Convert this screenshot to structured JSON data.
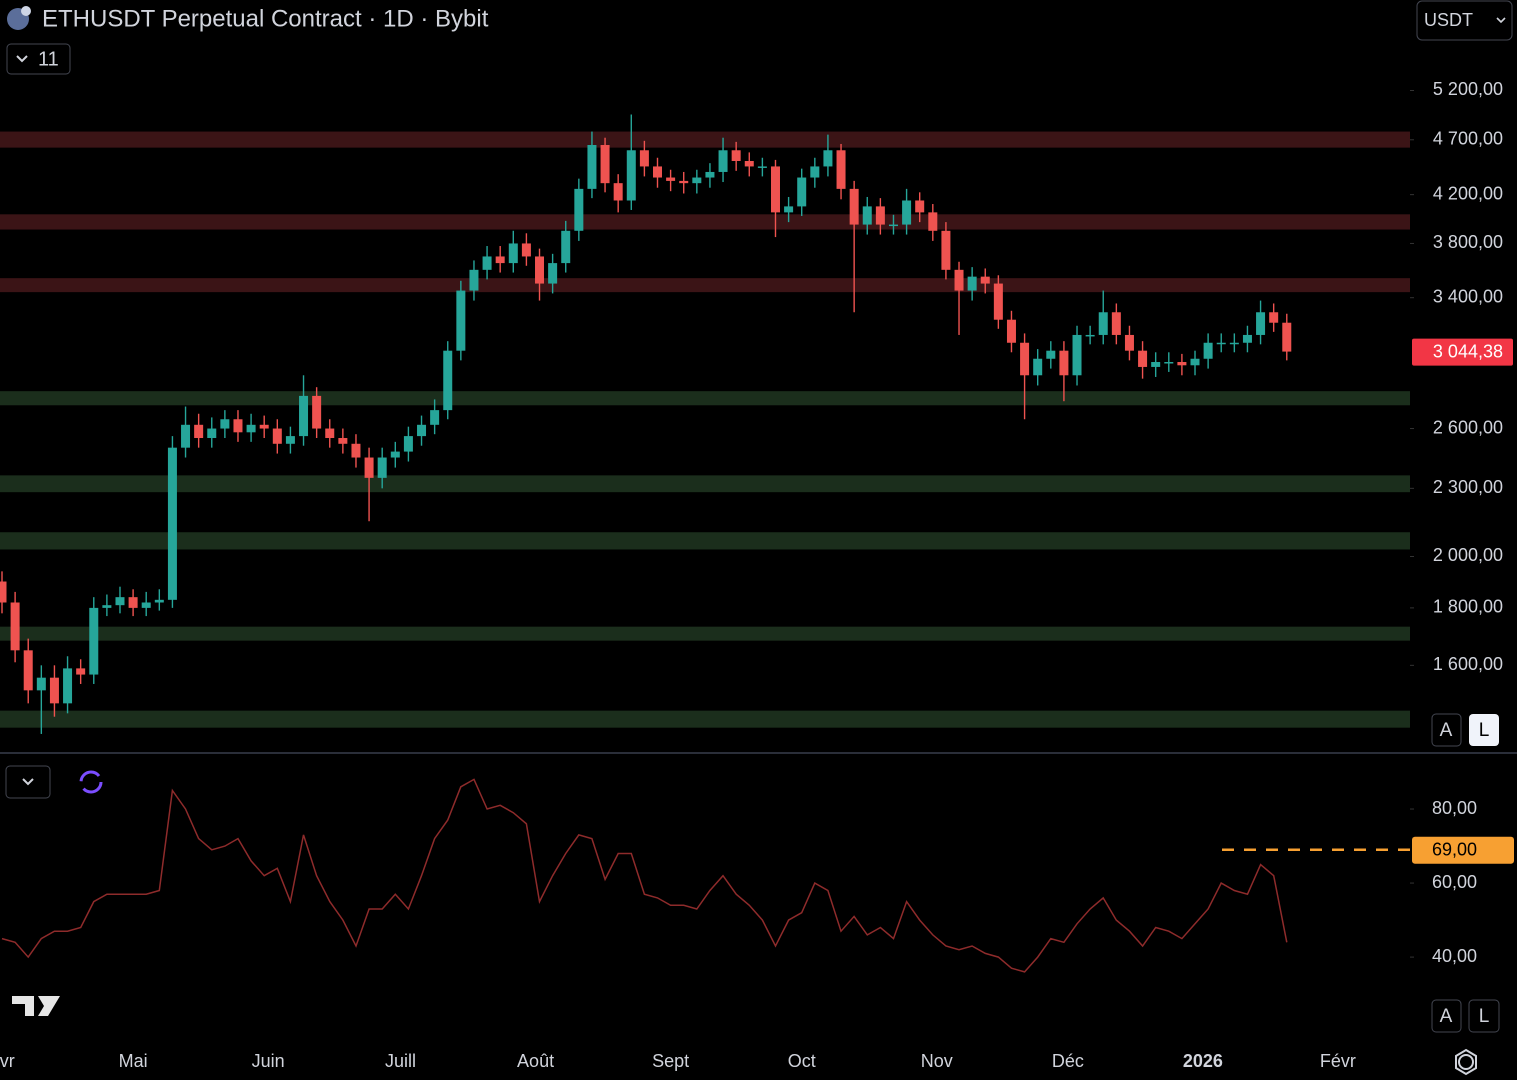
{
  "header": {
    "title": "ETHUSDT Perpetual Contract · 1D · Bybit",
    "indicator_count": "11",
    "currency": "USDT"
  },
  "scale_buttons": [
    "A",
    "L"
  ],
  "chart_data": [
    {
      "type": "candlestick",
      "log_scale": true,
      "up_color": "#26a69a",
      "down_color": "#ef5350",
      "ylim": [
        1345,
        6260
      ],
      "yticks": [
        {
          "value": 5200,
          "label": "5 200,00"
        },
        {
          "value": 4700,
          "label": "4 700,00"
        },
        {
          "value": 4200,
          "label": "4 200,00"
        },
        {
          "value": 3800,
          "label": "3 800,00"
        },
        {
          "value": 3400,
          "label": "3 400,00"
        },
        {
          "value": 2600,
          "label": "2 600,00"
        },
        {
          "value": 2300,
          "label": "2 300,00"
        },
        {
          "value": 2000,
          "label": "2 000,00"
        },
        {
          "value": 1800,
          "label": "1 800,00"
        },
        {
          "value": 1600,
          "label": "1 600,00"
        }
      ],
      "xticks": [
        {
          "value": 0.4,
          "label": "vr"
        },
        {
          "value": 10,
          "label": "Mai"
        },
        {
          "value": 20.3,
          "label": "Juin"
        },
        {
          "value": 30.4,
          "label": "Juill"
        },
        {
          "value": 40.7,
          "label": "Août"
        },
        {
          "value": 51,
          "label": "Sept"
        },
        {
          "value": 61,
          "label": "Oct"
        },
        {
          "value": 71.3,
          "label": "Nov"
        },
        {
          "value": 81.3,
          "label": "Déc"
        },
        {
          "value": 91.6,
          "label": "2026"
        },
        {
          "value": 101.9,
          "label": "Févr"
        }
      ],
      "zones": [
        {
          "low": 4625,
          "high": 4780,
          "color": "#3b1416"
        },
        {
          "low": 3910,
          "high": 4034,
          "color": "#3b1416"
        },
        {
          "low": 3439,
          "high": 3539,
          "color": "#3b1416"
        },
        {
          "low": 2727,
          "high": 2807,
          "color": "#1b2e1c"
        },
        {
          "low": 2282,
          "high": 2362,
          "color": "#1b2e1c"
        },
        {
          "low": 2029,
          "high": 2102,
          "color": "#1b2e1c"
        },
        {
          "low": 1683,
          "high": 1732,
          "color": "#1b2e1c"
        },
        {
          "low": 1408,
          "high": 1458,
          "color": "#1b2e1c"
        }
      ],
      "last_price": {
        "value": 3044.38,
        "label": "3 044,38",
        "color": "#f23645"
      },
      "open": [
        1900,
        1820,
        1650,
        1520,
        1560,
        1480,
        1590,
        1570,
        1800,
        1810,
        1840,
        1800,
        1820,
        1830,
        2500,
        2620,
        2550,
        2600,
        2650,
        2580,
        2620,
        2600,
        2520,
        2560,
        2780,
        2600,
        2550,
        2520,
        2450,
        2350,
        2450,
        2480,
        2560,
        2620,
        2700,
        3050,
        3450,
        3600,
        3700,
        3650,
        3800,
        3700,
        3500,
        3650,
        3900,
        4250,
        4650,
        4300,
        4150,
        4600,
        4450,
        4350,
        4320,
        4300,
        4350,
        4400,
        4600,
        4500,
        4450,
        4450,
        4050,
        4100,
        4350,
        4450,
        4600,
        4250,
        3950,
        4100,
        3950,
        3950,
        4150,
        4050,
        3900,
        3600,
        3450,
        3550,
        3500,
        3250,
        3100,
        2900,
        3000,
        3050,
        2900,
        3150,
        3150,
        3300,
        3150,
        3050,
        2950,
        2980,
        2980,
        2960,
        3000,
        3100,
        3100,
        3100,
        3150,
        3300,
        3230
      ],
      "high": [
        1940,
        1860,
        1690,
        1600,
        1600,
        1630,
        1620,
        1840,
        1850,
        1880,
        1870,
        1860,
        1870,
        2560,
        2720,
        2680,
        2660,
        2700,
        2700,
        2680,
        2670,
        2650,
        2610,
        2900,
        2830,
        2650,
        2600,
        2570,
        2500,
        2500,
        2530,
        2610,
        2670,
        2760,
        3110,
        3520,
        3670,
        3780,
        3780,
        3900,
        3880,
        3760,
        3720,
        3980,
        4340,
        4780,
        4720,
        4380,
        4950,
        4690,
        4530,
        4420,
        4400,
        4420,
        4480,
        4720,
        4680,
        4580,
        4530,
        4510,
        4180,
        4430,
        4530,
        4750,
        4660,
        4320,
        4180,
        4170,
        4030,
        4250,
        4220,
        4120,
        3970,
        3660,
        3620,
        3610,
        3560,
        3310,
        3160,
        3060,
        3110,
        3110,
        3210,
        3210,
        3450,
        3360,
        3210,
        3110,
        3040,
        3040,
        3030,
        3050,
        3160,
        3160,
        3160,
        3210,
        3380,
        3360,
        3290
      ],
      "low": [
        1780,
        1610,
        1480,
        1390,
        1440,
        1450,
        1540,
        1540,
        1770,
        1780,
        1770,
        1770,
        1790,
        1800,
        2450,
        2500,
        2500,
        2550,
        2530,
        2530,
        2550,
        2470,
        2470,
        2510,
        2550,
        2500,
        2470,
        2400,
        2150,
        2300,
        2400,
        2430,
        2510,
        2570,
        2650,
        2990,
        3380,
        3530,
        3580,
        3580,
        3630,
        3380,
        3430,
        3580,
        3820,
        4170,
        4220,
        4050,
        4070,
        4360,
        4260,
        4230,
        4210,
        4210,
        4260,
        4310,
        4410,
        4360,
        4360,
        3850,
        3970,
        4020,
        4260,
        4360,
        4160,
        3300,
        3870,
        3870,
        3870,
        3870,
        3970,
        3820,
        3530,
        3150,
        3380,
        3430,
        3190,
        3040,
        2650,
        2840,
        2940,
        2750,
        2840,
        3090,
        3090,
        3090,
        2990,
        2880,
        2890,
        2920,
        2900,
        2900,
        2940,
        3040,
        3040,
        3040,
        3090,
        3170,
        2990
      ],
      "close": [
        1820,
        1650,
        1520,
        1560,
        1480,
        1590,
        1570,
        1800,
        1810,
        1840,
        1800,
        1820,
        1830,
        2500,
        2620,
        2550,
        2600,
        2650,
        2580,
        2620,
        2600,
        2520,
        2560,
        2780,
        2600,
        2550,
        2520,
        2450,
        2350,
        2450,
        2480,
        2560,
        2620,
        2700,
        3050,
        3450,
        3600,
        3700,
        3650,
        3800,
        3700,
        3500,
        3650,
        3900,
        4250,
        4650,
        4300,
        4150,
        4600,
        4450,
        4350,
        4320,
        4300,
        4350,
        4400,
        4600,
        4500,
        4450,
        4450,
        4050,
        4100,
        4350,
        4450,
        4600,
        4250,
        3950,
        4100,
        3950,
        3950,
        4150,
        4050,
        3900,
        3600,
        3450,
        3550,
        3500,
        3250,
        3100,
        2900,
        3000,
        3050,
        2900,
        3150,
        3150,
        3300,
        3150,
        3050,
        2950,
        2980,
        2980,
        2960,
        3000,
        3100,
        3100,
        3100,
        3150,
        3300,
        3230,
        3044.38
      ]
    },
    {
      "type": "line",
      "color": "#8e2b2b",
      "ylim": [
        17.6,
        94.6
      ],
      "yticks": [
        {
          "value": 80,
          "label": "80,00"
        },
        {
          "value": 60,
          "label": "60,00"
        },
        {
          "value": 40,
          "label": "40,00"
        }
      ],
      "level": {
        "value": 69,
        "label": "69,00",
        "color": "#f7a032"
      },
      "values": [
        45,
        44,
        40,
        45,
        47,
        47,
        48,
        55,
        57,
        57,
        57,
        57,
        58,
        85,
        80,
        72,
        69,
        70,
        72,
        66,
        62,
        64,
        55,
        73,
        62,
        55,
        50,
        43,
        53,
        53,
        57,
        53,
        62,
        72,
        77,
        86,
        88,
        80,
        81,
        79,
        76,
        55,
        62,
        68,
        73,
        72,
        61,
        68,
        68,
        57,
        56,
        54,
        54,
        53,
        58,
        62,
        57,
        54,
        50,
        43,
        50,
        52,
        60,
        58,
        47,
        51,
        46,
        48,
        45,
        55,
        50,
        46,
        43,
        42,
        43,
        41,
        40,
        37,
        36,
        40,
        45,
        44,
        49,
        53,
        56,
        50,
        47,
        43,
        48,
        47,
        45,
        49,
        53,
        60,
        58,
        57,
        65,
        62,
        44
      ]
    }
  ]
}
